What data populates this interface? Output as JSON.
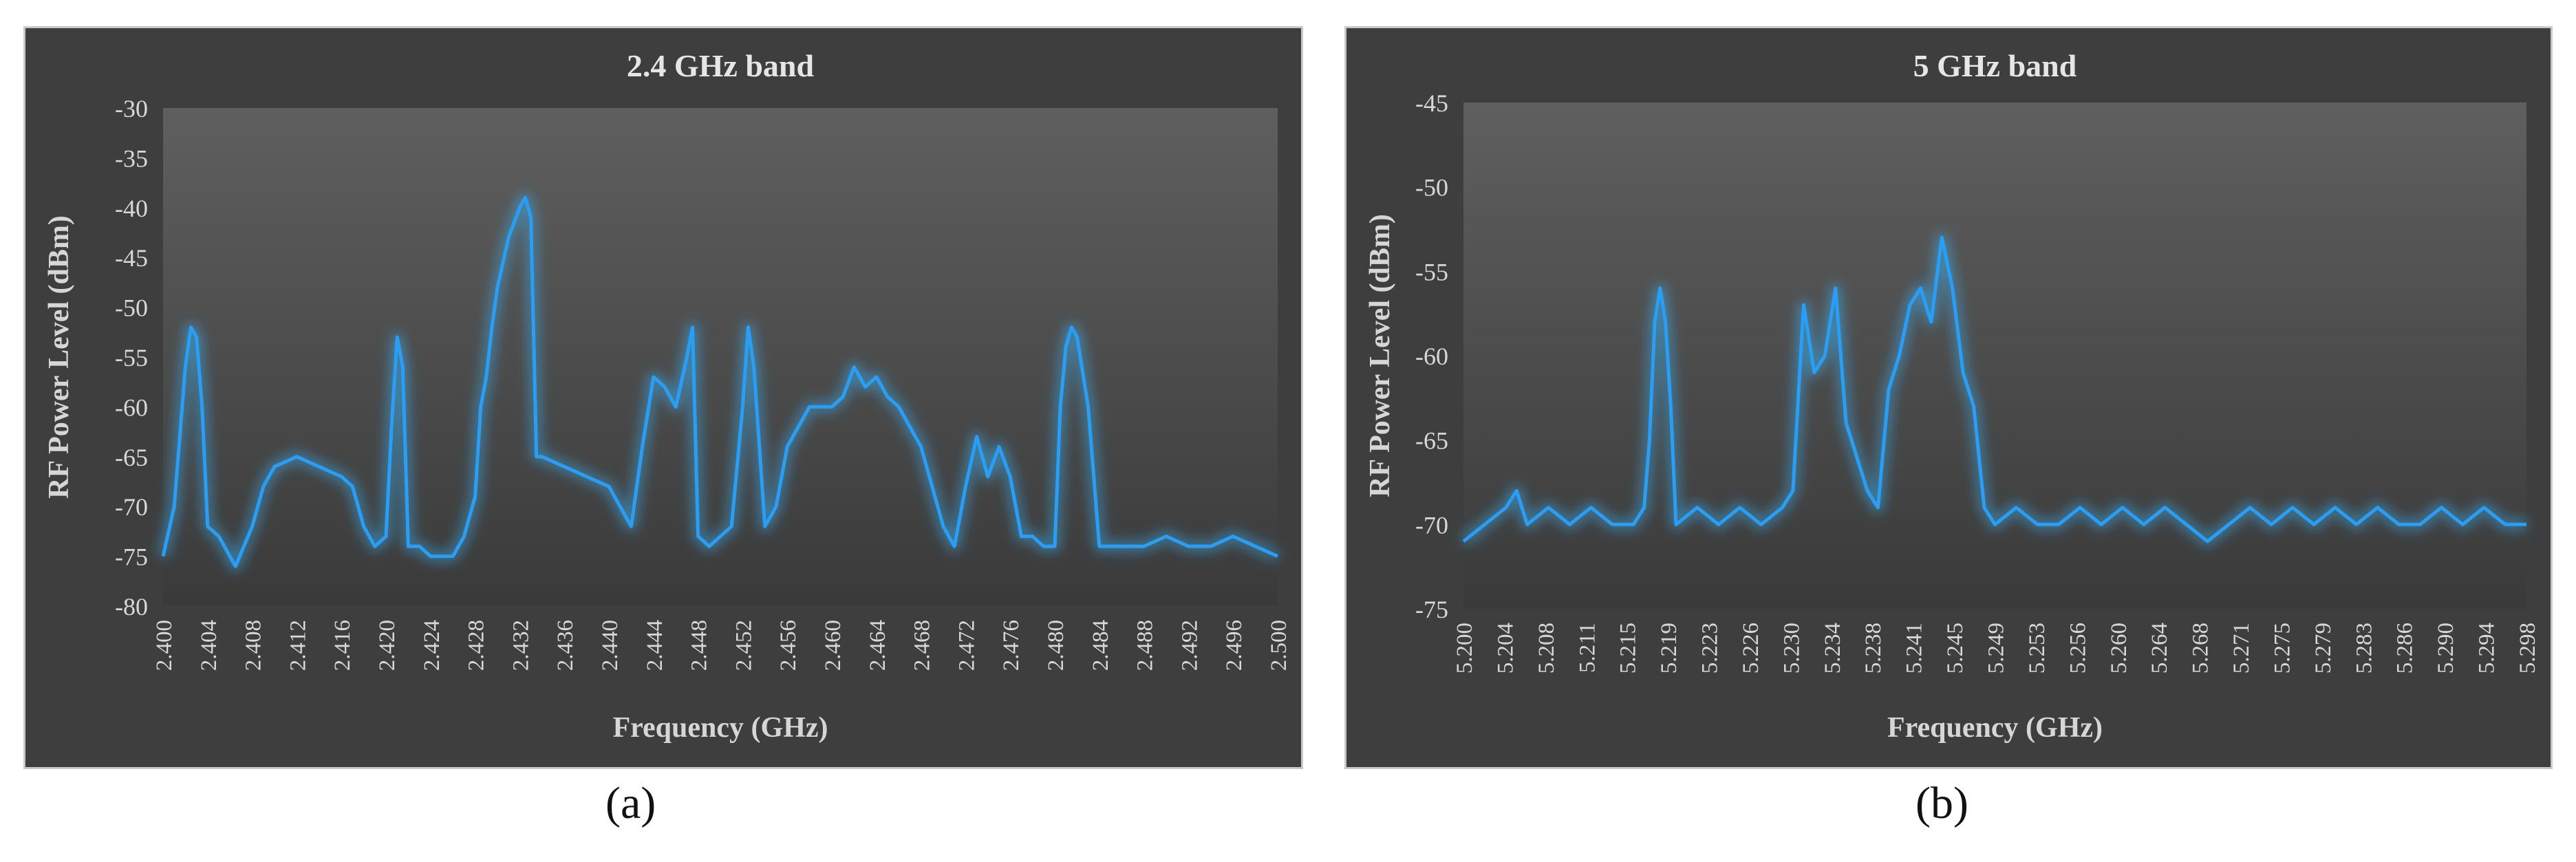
{
  "figure": {
    "label_a": "(a)",
    "label_b": "(b)"
  },
  "colors": {
    "panel_bg": "#3e3e3e",
    "series_line": "#2a9df4",
    "glow": "#35b6ff",
    "text": "#d8d8d8"
  },
  "chart_data": [
    {
      "type": "line",
      "title": "2.4 GHz band",
      "xlabel": "Frequency (GHz)",
      "ylabel": "RF Power Level (dBm)",
      "xlim": [
        2.4,
        2.5
      ],
      "ylim": [
        -80,
        -30
      ],
      "y_ticks": [
        -30,
        -35,
        -40,
        -45,
        -50,
        -55,
        -60,
        -65,
        -70,
        -75,
        -80
      ],
      "x_ticks": [
        "2.400",
        "2.404",
        "2.408",
        "2.412",
        "2.416",
        "2.420",
        "2.424",
        "2.428",
        "2.432",
        "2.436",
        "2.440",
        "2.444",
        "2.448",
        "2.452",
        "2.456",
        "2.460",
        "2.464",
        "2.468",
        "2.472",
        "2.476",
        "2.480",
        "2.484",
        "2.488",
        "2.492",
        "2.496",
        "2.500"
      ],
      "grid": false,
      "legend": "none",
      "series": [
        {
          "x": [
            2.4,
            2.401,
            2.402,
            2.4025,
            2.403,
            2.4035,
            2.404,
            2.405,
            2.406,
            2.4065,
            2.408,
            2.409,
            2.41,
            2.412,
            2.414,
            2.416,
            2.417,
            2.418,
            2.419,
            2.42,
            2.4205,
            2.421,
            2.4215,
            2.422,
            2.423,
            2.424,
            2.426,
            2.427,
            2.428,
            2.4285,
            2.429,
            2.4295,
            2.43,
            2.431,
            2.432,
            2.4325,
            2.433,
            2.4335,
            2.434,
            2.436,
            2.438,
            2.44,
            2.441,
            2.442,
            2.443,
            2.444,
            2.445,
            2.446,
            2.447,
            2.4475,
            2.448,
            2.449,
            2.45,
            2.451,
            2.452,
            2.4525,
            2.453,
            2.454,
            2.455,
            2.456,
            2.457,
            2.458,
            2.46,
            2.461,
            2.462,
            2.463,
            2.464,
            2.465,
            2.466,
            2.467,
            2.468,
            2.469,
            2.47,
            2.471,
            2.472,
            2.473,
            2.474,
            2.475,
            2.476,
            2.477,
            2.478,
            2.479,
            2.48,
            2.4805,
            2.481,
            2.4815,
            2.482,
            2.483,
            2.484,
            2.486,
            2.488,
            2.49,
            2.492,
            2.494,
            2.496,
            2.498,
            2.5
          ],
          "y": [
            -75,
            -70,
            -56,
            -52,
            -53,
            -60,
            -72,
            -73,
            -75,
            -76,
            -72,
            -68,
            -66,
            -65,
            -66,
            -67,
            -68,
            -72,
            -74,
            -73,
            -62,
            -53,
            -56,
            -74,
            -74,
            -75,
            -75,
            -73,
            -69,
            -60,
            -57,
            -52,
            -48,
            -43,
            -40,
            -39,
            -41,
            -65,
            -65,
            -66,
            -67,
            -68,
            -70,
            -72,
            -64,
            -57,
            -58,
            -60,
            -55,
            -52,
            -73,
            -74,
            -73,
            -72,
            -60,
            -52,
            -56,
            -72,
            -70,
            -64,
            -62,
            -60,
            -60,
            -59,
            -56,
            -58,
            -57,
            -59,
            -60,
            -62,
            -64,
            -68,
            -72,
            -74,
            -68,
            -63,
            -67,
            -64,
            -67,
            -73,
            -73,
            -74,
            -74,
            -60,
            -54,
            -52,
            -53,
            -60,
            -74,
            -74,
            -74,
            -73,
            -74,
            -74,
            -73,
            -74,
            -75
          ]
        }
      ]
    },
    {
      "type": "line",
      "title": "5 GHz band",
      "xlabel": "Frequency (GHz)",
      "ylabel": "RF Power Level (dBm)",
      "xlim": [
        5.2,
        5.3
      ],
      "ylim": [
        -75,
        -45
      ],
      "y_ticks": [
        -45,
        -50,
        -55,
        -60,
        -65,
        -70,
        -75
      ],
      "x_ticks": [
        "5.200",
        "5.204",
        "5.208",
        "5.211",
        "5.215",
        "5.219",
        "5.223",
        "5.226",
        "5.230",
        "5.234",
        "5.238",
        "5.241",
        "5.245",
        "5.249",
        "5.253",
        "5.256",
        "5.260",
        "5.264",
        "5.268",
        "5.271",
        "5.275",
        "5.279",
        "5.283",
        "5.286",
        "5.290",
        "5.294",
        "5.298"
      ],
      "grid": false,
      "legend": "none",
      "series": [
        {
          "x": [
            5.2,
            5.202,
            5.204,
            5.205,
            5.206,
            5.208,
            5.21,
            5.212,
            5.214,
            5.216,
            5.217,
            5.2175,
            5.218,
            5.2185,
            5.219,
            5.2195,
            5.22,
            5.222,
            5.224,
            5.226,
            5.228,
            5.23,
            5.231,
            5.232,
            5.233,
            5.234,
            5.235,
            5.236,
            5.237,
            5.238,
            5.239,
            5.24,
            5.241,
            5.242,
            5.243,
            5.244,
            5.245,
            5.246,
            5.247,
            5.248,
            5.249,
            5.25,
            5.252,
            5.254,
            5.256,
            5.258,
            5.26,
            5.262,
            5.264,
            5.266,
            5.268,
            5.27,
            5.272,
            5.274,
            5.276,
            5.278,
            5.28,
            5.282,
            5.284,
            5.286,
            5.288,
            5.29,
            5.292,
            5.294,
            5.296,
            5.298,
            5.3
          ],
          "y": [
            -71,
            -70,
            -69,
            -68,
            -70,
            -69,
            -70,
            -69,
            -70,
            -70,
            -69,
            -65,
            -58,
            -56,
            -58,
            -63,
            -70,
            -69,
            -70,
            -69,
            -70,
            -69,
            -68,
            -57,
            -61,
            -60,
            -56,
            -64,
            -66,
            -68,
            -69,
            -62,
            -60,
            -57,
            -56,
            -58,
            -53,
            -56,
            -61,
            -63,
            -69,
            -70,
            -69,
            -70,
            -70,
            -69,
            -70,
            -69,
            -70,
            -69,
            -70,
            -71,
            -70,
            -69,
            -70,
            -69,
            -70,
            -69,
            -70,
            -69,
            -70,
            -70,
            -69,
            -70,
            -69,
            -70,
            -70
          ]
        }
      ]
    }
  ]
}
